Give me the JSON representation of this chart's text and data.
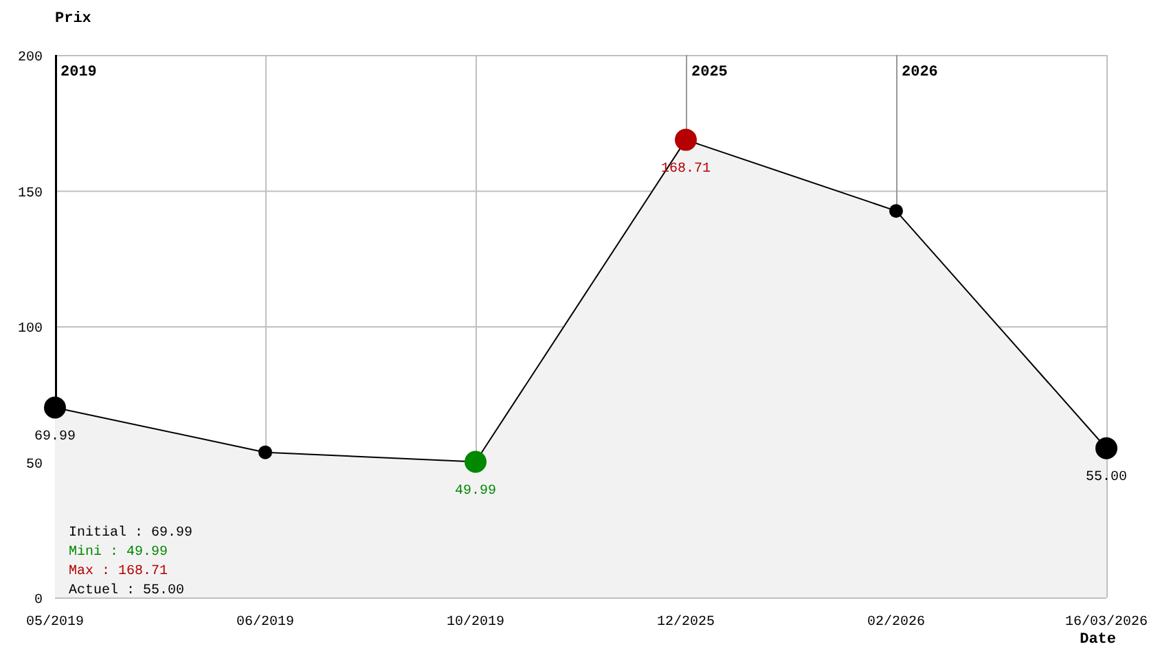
{
  "chart_data": {
    "type": "area",
    "xlabel": "Date",
    "ylabel": "Prix",
    "categories": [
      "05/2019",
      "06/2019",
      "10/2019",
      "12/2025",
      "02/2026",
      "16/03/2026"
    ],
    "series": [
      {
        "color": "#000000",
        "colors": [
          "#000000",
          "#000000",
          "#008800",
          "#b40000",
          "#000000",
          "#000000"
        ],
        "values": [
          69.99,
          53.5,
          49.99,
          168.71,
          142.5,
          55.0
        ],
        "value_labels": [
          "69.99",
          null,
          "49.99",
          "168.71",
          null,
          "55.00"
        ]
      }
    ],
    "ylim": [
      0,
      200
    ],
    "yticks": [
      0,
      50,
      100,
      150,
      200
    ],
    "grid": true,
    "marker": "circle",
    "line_style": "solid",
    "ref_lines": [
      {
        "axis": "x",
        "value": "12/2025",
        "label": "2025",
        "color": "#999999"
      },
      {
        "axis": "x",
        "value": "02/2026",
        "label": "2026",
        "color": "#999999"
      }
    ],
    "annotations": [
      "2019",
      "Initial : 69.99",
      "Mini : 49.99",
      "Max : 168.71",
      "Actuel : 55.00"
    ]
  }
}
